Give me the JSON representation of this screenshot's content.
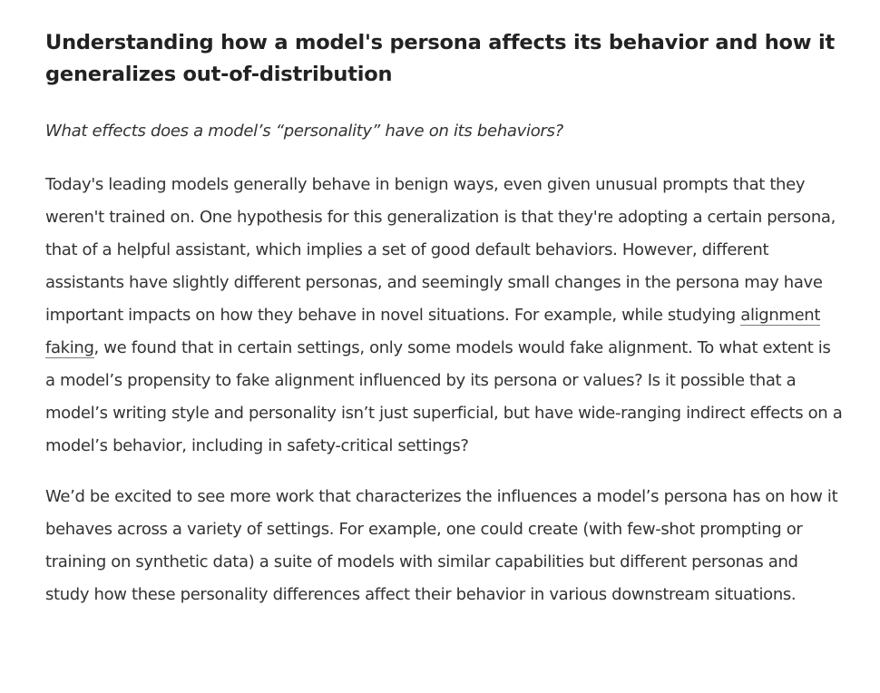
{
  "article": {
    "title": "Understanding how a model's persona affects its behavior and how it generalizes out-of-distribution",
    "subtitle": "What effects does a model’s “personality” have on its behaviors?",
    "paragraph1": {
      "before_link": "Today's leading models generally behave in benign ways, even given unusual prompts that they weren't trained on. One hypothesis for this generalization is that they're adopting a certain persona, that of a helpful assistant, which implies a set of good default behaviors. However, different assistants have slightly different personas, and seemingly small changes in the persona may have important impacts on how they behave in novel situations. For example, while studying ",
      "link_text": "alignment faking",
      "after_link": ", we found that in certain settings, only some models would fake alignment. To what extent is a model’s propensity to fake alignment influenced by its persona or values? Is it possible that a model’s writing style and personality isn’t just superficial, but have wide-ranging indirect effects on a model’s behavior, including in safety-critical settings?"
    },
    "paragraph2": "We’d be excited to see more work that characterizes the influences a model’s persona has on how it behaves across a variety of settings. For example, one could create (with few-shot prompting or training on synthetic data) a suite of models with similar capabilities but different personas and study how these personality differences affect their behavior in various downstream situations."
  }
}
